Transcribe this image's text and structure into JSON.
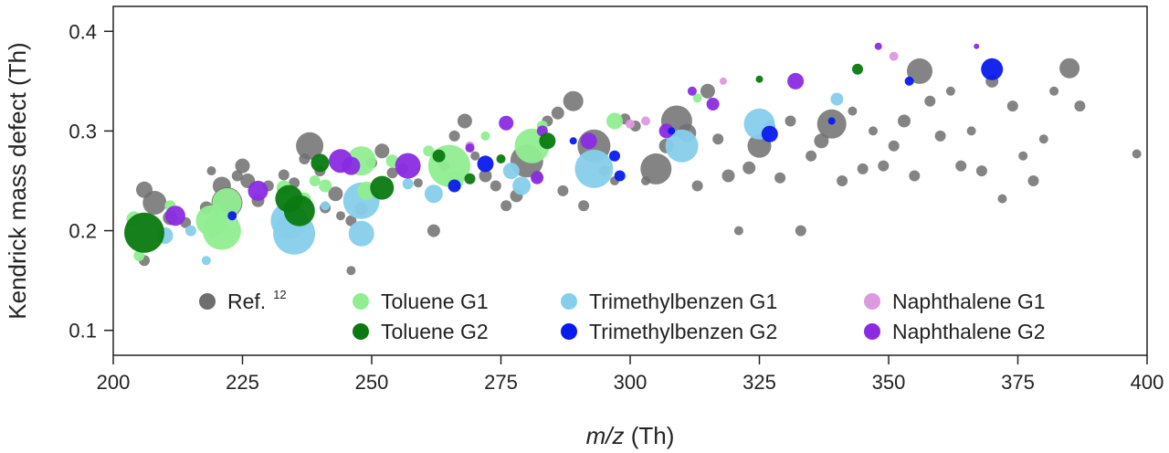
{
  "chart_data": {
    "type": "scatter",
    "xlabel_italic": "m/z",
    "xlabel_unit": " (Th)",
    "ylabel": "Kendrick mass defect (Th)",
    "xlim": [
      200,
      400
    ],
    "ylim": [
      0.075,
      0.425
    ],
    "xticks": [
      "200",
      "225",
      "250",
      "275",
      "300",
      "325",
      "350",
      "375",
      "400"
    ],
    "yticks": [
      "0.1",
      "0.2",
      "0.3",
      "0.4"
    ],
    "grid": false,
    "legend_position": "bottom-inside",
    "colors": {
      "ref": "#6e6e6e",
      "toluene_g1": "#90ee90",
      "toluene_g2": "#0a7a10",
      "tmb_g1": "#87ceeb",
      "tmb_g2": "#0a1aee",
      "naph_g1": "#dd99dd",
      "naph_g2": "#8a2be2"
    },
    "legend": [
      {
        "key": "ref",
        "label": "Ref.",
        "sup": "12"
      },
      {
        "key": "toluene_g1",
        "label": "Toluene G1"
      },
      {
        "key": "tmb_g1",
        "label": "Trimethylbenzen G1"
      },
      {
        "key": "naph_g1",
        "label": "Naphthalene G1"
      },
      {
        "key": "toluene_g2",
        "label": "Toluene G2"
      },
      {
        "key": "tmb_g2",
        "label": "Trimethylbenzen G2"
      },
      {
        "key": "naph_g2",
        "label": "Naphthalene G2"
      }
    ],
    "series": [
      {
        "key": "ref",
        "points": [
          [
            206,
            0.241,
            9
          ],
          [
            208,
            0.228,
            13
          ],
          [
            211,
            0.213,
            8
          ],
          [
            214,
            0.208,
            6
          ],
          [
            218,
            0.223,
            7
          ],
          [
            219,
            0.26,
            5
          ],
          [
            221,
            0.245,
            10
          ],
          [
            222,
            0.228,
            17
          ],
          [
            224,
            0.255,
            6
          ],
          [
            225,
            0.265,
            8
          ],
          [
            226,
            0.25,
            8
          ],
          [
            228,
            0.23,
            7
          ],
          [
            230,
            0.245,
            6
          ],
          [
            233,
            0.256,
            6
          ],
          [
            235,
            0.248,
            6
          ],
          [
            237,
            0.272,
            6
          ],
          [
            238,
            0.285,
            15
          ],
          [
            240,
            0.26,
            6
          ],
          [
            241,
            0.223,
            6
          ],
          [
            243,
            0.237,
            8
          ],
          [
            244,
            0.215,
            5
          ],
          [
            246,
            0.21,
            6
          ],
          [
            248,
            0.222,
            7
          ],
          [
            250,
            0.268,
            6
          ],
          [
            252,
            0.28,
            8
          ],
          [
            254,
            0.258,
            6
          ],
          [
            256,
            0.262,
            6
          ],
          [
            259,
            0.248,
            5
          ],
          [
            262,
            0.2,
            7
          ],
          [
            264,
            0.265,
            6
          ],
          [
            266,
            0.295,
            6
          ],
          [
            268,
            0.31,
            8
          ],
          [
            270,
            0.275,
            5
          ],
          [
            272,
            0.255,
            7
          ],
          [
            274,
            0.245,
            6
          ],
          [
            276,
            0.225,
            6
          ],
          [
            278,
            0.235,
            7
          ],
          [
            280,
            0.27,
            18
          ],
          [
            282,
            0.255,
            6
          ],
          [
            284,
            0.31,
            6
          ],
          [
            286,
            0.318,
            7
          ],
          [
            287,
            0.24,
            6
          ],
          [
            289,
            0.33,
            11
          ],
          [
            291,
            0.225,
            6
          ],
          [
            293,
            0.285,
            18
          ],
          [
            295,
            0.26,
            6
          ],
          [
            297,
            0.25,
            5
          ],
          [
            299,
            0.312,
            6
          ],
          [
            301,
            0.305,
            6
          ],
          [
            303,
            0.25,
            5
          ],
          [
            305,
            0.262,
            17
          ],
          [
            307,
            0.285,
            8
          ],
          [
            309,
            0.31,
            17
          ],
          [
            311,
            0.298,
            10
          ],
          [
            313,
            0.245,
            6
          ],
          [
            315,
            0.34,
            8
          ],
          [
            317,
            0.292,
            6
          ],
          [
            319,
            0.255,
            7
          ],
          [
            321,
            0.2,
            5
          ],
          [
            323,
            0.263,
            7
          ],
          [
            325,
            0.285,
            13
          ],
          [
            327,
            0.305,
            6
          ],
          [
            329,
            0.253,
            6
          ],
          [
            331,
            0.31,
            6
          ],
          [
            333,
            0.2,
            6
          ],
          [
            335,
            0.275,
            6
          ],
          [
            337,
            0.29,
            8
          ],
          [
            339,
            0.307,
            16
          ],
          [
            341,
            0.25,
            6
          ],
          [
            343,
            0.32,
            5
          ],
          [
            345,
            0.262,
            6
          ],
          [
            347,
            0.3,
            5
          ],
          [
            349,
            0.265,
            6
          ],
          [
            351,
            0.285,
            6
          ],
          [
            353,
            0.31,
            7
          ],
          [
            355,
            0.255,
            6
          ],
          [
            356,
            0.36,
            14
          ],
          [
            358,
            0.33,
            6
          ],
          [
            360,
            0.295,
            6
          ],
          [
            362,
            0.34,
            5
          ],
          [
            364,
            0.265,
            6
          ],
          [
            366,
            0.3,
            5
          ],
          [
            368,
            0.26,
            6
          ],
          [
            370,
            0.35,
            7
          ],
          [
            372,
            0.232,
            5
          ],
          [
            374,
            0.325,
            6
          ],
          [
            376,
            0.275,
            5
          ],
          [
            378,
            0.25,
            6
          ],
          [
            380,
            0.292,
            5
          ],
          [
            382,
            0.34,
            5
          ],
          [
            385,
            0.363,
            11
          ],
          [
            387,
            0.325,
            6
          ],
          [
            398,
            0.277,
            5
          ],
          [
            206,
            0.17,
            6
          ],
          [
            246,
            0.16,
            5
          ]
        ]
      },
      {
        "key": "toluene_g1",
        "points": [
          [
            204,
            0.212,
            8
          ],
          [
            211,
            0.225,
            6
          ],
          [
            219,
            0.21,
            17
          ],
          [
            221,
            0.2,
            21
          ],
          [
            222,
            0.228,
            16
          ],
          [
            233,
            0.243,
            8
          ],
          [
            237,
            0.232,
            7
          ],
          [
            239,
            0.25,
            6
          ],
          [
            241,
            0.245,
            7
          ],
          [
            248,
            0.27,
            16
          ],
          [
            249,
            0.24,
            10
          ],
          [
            254,
            0.27,
            7
          ],
          [
            261,
            0.28,
            6
          ],
          [
            265,
            0.265,
            23
          ],
          [
            266,
            0.25,
            10
          ],
          [
            272,
            0.295,
            5
          ],
          [
            281,
            0.285,
            19
          ],
          [
            283,
            0.305,
            6
          ],
          [
            297,
            0.31,
            9
          ],
          [
            313,
            0.333,
            5
          ],
          [
            205,
            0.175,
            6
          ]
        ]
      },
      {
        "key": "toluene_g2",
        "points": [
          [
            206,
            0.198,
            22
          ],
          [
            234,
            0.232,
            15
          ],
          [
            236,
            0.22,
            17
          ],
          [
            240,
            0.268,
            10
          ],
          [
            252,
            0.243,
            13
          ],
          [
            263,
            0.275,
            7
          ],
          [
            269,
            0.252,
            6
          ],
          [
            275,
            0.272,
            5
          ],
          [
            284,
            0.29,
            9
          ],
          [
            325,
            0.352,
            4
          ],
          [
            344,
            0.362,
            6
          ]
        ]
      },
      {
        "key": "tmb_g1",
        "points": [
          [
            210,
            0.195,
            9
          ],
          [
            215,
            0.2,
            6
          ],
          [
            234,
            0.21,
            20
          ],
          [
            235,
            0.197,
            23
          ],
          [
            241,
            0.225,
            5
          ],
          [
            248,
            0.23,
            20
          ],
          [
            248,
            0.197,
            14
          ],
          [
            257,
            0.247,
            6
          ],
          [
            262,
            0.237,
            10
          ],
          [
            277,
            0.26,
            9
          ],
          [
            279,
            0.245,
            10
          ],
          [
            293,
            0.262,
            21
          ],
          [
            310,
            0.285,
            18
          ],
          [
            325,
            0.307,
            17
          ],
          [
            340,
            0.332,
            7
          ],
          [
            218,
            0.17,
            5
          ]
        ]
      },
      {
        "key": "tmb_g2",
        "points": [
          [
            223,
            0.215,
            5
          ],
          [
            266,
            0.245,
            7
          ],
          [
            272,
            0.267,
            9
          ],
          [
            289,
            0.29,
            4
          ],
          [
            297,
            0.275,
            6
          ],
          [
            298,
            0.255,
            6
          ],
          [
            308,
            0.3,
            4
          ],
          [
            327,
            0.297,
            9
          ],
          [
            339,
            0.31,
            4
          ],
          [
            370,
            0.362,
            12
          ],
          [
            354,
            0.35,
            5
          ]
        ]
      },
      {
        "key": "naph_g1",
        "points": [
          [
            219,
            0.196,
            4
          ],
          [
            300,
            0.307,
            5
          ],
          [
            303,
            0.31,
            5
          ],
          [
            318,
            0.35,
            4
          ],
          [
            351,
            0.375,
            5
          ],
          [
            269,
            0.285,
            5
          ]
        ]
      },
      {
        "key": "naph_g2",
        "points": [
          [
            212,
            0.215,
            11
          ],
          [
            228,
            0.24,
            11
          ],
          [
            244,
            0.27,
            13
          ],
          [
            246,
            0.265,
            10
          ],
          [
            257,
            0.265,
            14
          ],
          [
            269,
            0.283,
            5
          ],
          [
            276,
            0.308,
            8
          ],
          [
            283,
            0.3,
            6
          ],
          [
            292,
            0.29,
            9
          ],
          [
            307,
            0.3,
            8
          ],
          [
            316,
            0.327,
            7
          ],
          [
            332,
            0.35,
            9
          ],
          [
            348,
            0.385,
            4
          ],
          [
            367,
            0.385,
            3
          ],
          [
            312,
            0.34,
            5
          ],
          [
            282,
            0.253,
            7
          ]
        ]
      }
    ]
  }
}
